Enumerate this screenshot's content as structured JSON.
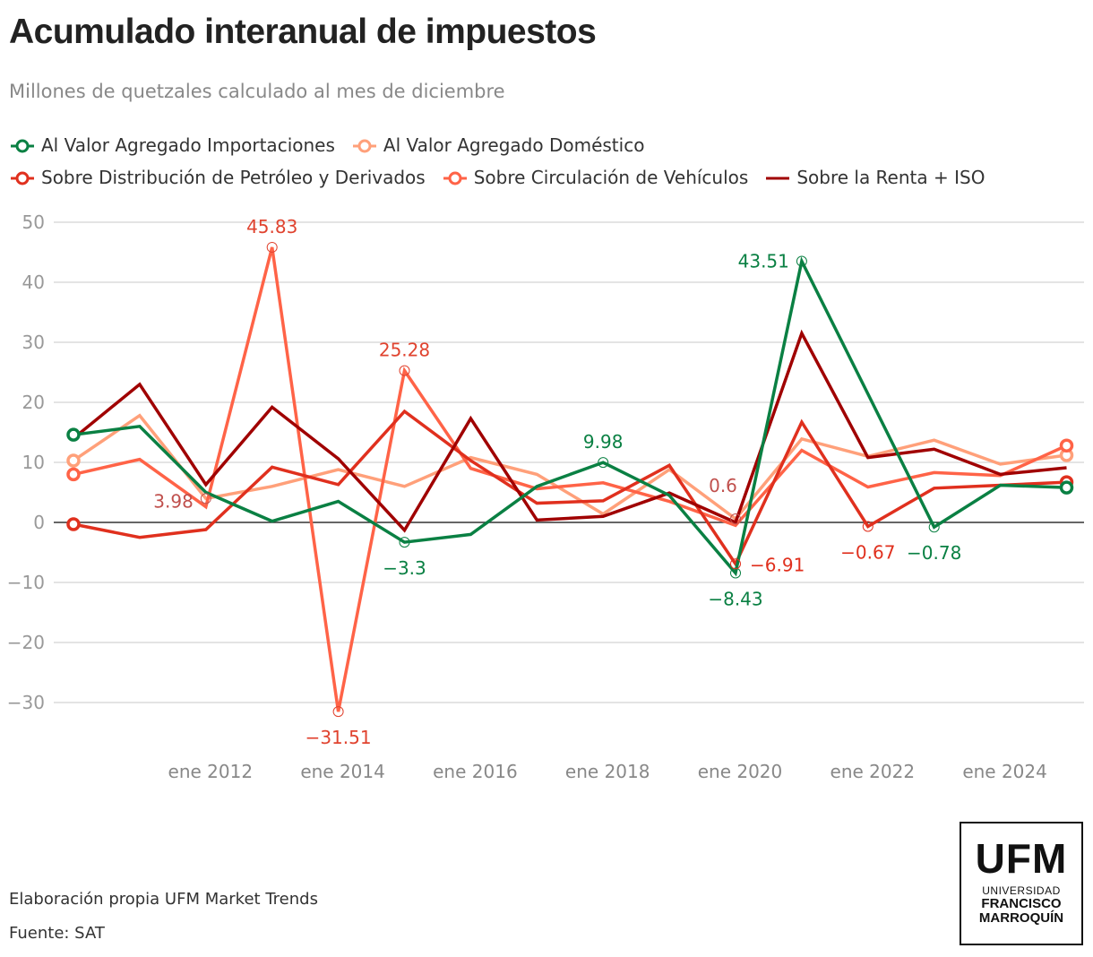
{
  "title": "Acumulado interanual de impuestos",
  "subtitle": "Millones de quetzales calculado al mes de diciembre",
  "footer": {
    "credit": "Elaboración propia UFM Market Trends",
    "source": "Fuente: SAT"
  },
  "logo": {
    "big": "UFM",
    "line1": "UNIVERSIDAD",
    "line2": "FRANCISCO",
    "line3": "MARROQUÍN"
  },
  "chart_data": {
    "type": "line",
    "title": "Acumulado interanual de impuestos",
    "ylabel": "Millones de quetzales",
    "ylim": [
      -35,
      50
    ],
    "yticks": [
      50,
      40,
      30,
      20,
      10,
      0,
      -10,
      -20,
      -30
    ],
    "ytick_labels": [
      "50",
      "40",
      "30",
      "20",
      "10",
      "0",
      "−10",
      "−20",
      "−30"
    ],
    "xticks": [
      {
        "label": "ene 2012",
        "year": 2012
      },
      {
        "label": "ene 2014",
        "year": 2014
      },
      {
        "label": "ene 2016",
        "year": 2016
      },
      {
        "label": "ene 2018",
        "year": 2018
      },
      {
        "label": "ene 2020",
        "year": 2020
      },
      {
        "label": "ene 2022",
        "year": 2022
      },
      {
        "label": "ene 2024",
        "year": 2024
      }
    ],
    "x": [
      2010,
      2011,
      2012,
      2013,
      2014,
      2015,
      2016,
      2017,
      2018,
      2019,
      2020,
      2021,
      2022,
      2023,
      2024,
      2025
    ],
    "grid": true,
    "legend": "top",
    "series": [
      {
        "name": "Al Valor Agregado Importaciones",
        "color": "#0a8043",
        "values": [
          14.6,
          16,
          5,
          0.2,
          3.5,
          -3.3,
          -2,
          6,
          9.98,
          4.5,
          -8.43,
          43.51,
          21.4,
          -0.78,
          6.2,
          5.8
        ]
      },
      {
        "name": "Al Valor Agregado Doméstico",
        "color": "#ffa07a",
        "values": [
          10.3,
          17.8,
          3.98,
          6,
          8.8,
          6,
          10.8,
          8,
          1.4,
          8.8,
          0.6,
          13.9,
          11,
          13.7,
          9.7,
          11.2
        ]
      },
      {
        "name": "Sobre Distribución de Petróleo y Derivados",
        "color": "#e0301e",
        "values": [
          -0.3,
          -2.5,
          -1.2,
          9.2,
          6.3,
          18.5,
          10.3,
          3.2,
          3.6,
          9.5,
          -6.91,
          16.7,
          -0.67,
          5.7,
          6.2,
          6.7
        ]
      },
      {
        "name": "Sobre Circulación de Vehículos",
        "color": "#ff6347",
        "values": [
          8,
          10.5,
          2.6,
          45.83,
          -31.51,
          25.28,
          9,
          5.6,
          6.6,
          3.5,
          -0.5,
          12,
          5.9,
          8.3,
          7.8,
          12.8
        ]
      },
      {
        "name": "Sobre la Renta + ISO",
        "color": "#a00000",
        "values": [
          14,
          23,
          6.3,
          19.2,
          10.6,
          -1.3,
          17.3,
          0.4,
          1,
          4.9,
          0,
          31.5,
          10.8,
          12.2,
          8,
          9.1
        ]
      }
    ],
    "annotations": [
      {
        "series": 3,
        "index": 3,
        "label": "45.83",
        "color": "#e0432f"
      },
      {
        "series": 3,
        "index": 4,
        "label": "−31.51",
        "color": "#e0432f"
      },
      {
        "series": 3,
        "index": 5,
        "label": "25.28",
        "color": "#e0432f"
      },
      {
        "series": 1,
        "index": 2,
        "label": "3.98",
        "color": "#c0504d"
      },
      {
        "series": 0,
        "index": 5,
        "label": "−3.3",
        "color": "#0a8043"
      },
      {
        "series": 0,
        "index": 8,
        "label": "9.98",
        "color": "#0a8043"
      },
      {
        "series": 0,
        "index": 11,
        "label": "43.51",
        "color": "#0a8043"
      },
      {
        "series": 0,
        "index": 10,
        "label": "−8.43",
        "color": "#0a8043"
      },
      {
        "series": 2,
        "index": 10,
        "label": "−6.91",
        "color": "#e0301e"
      },
      {
        "series": 1,
        "index": 10,
        "label": "0.6",
        "color": "#c0504d"
      },
      {
        "series": 2,
        "index": 12,
        "label": "−0.67",
        "color": "#e0301e"
      },
      {
        "series": 0,
        "index": 13,
        "label": "−0.78",
        "color": "#0a8043"
      }
    ]
  }
}
